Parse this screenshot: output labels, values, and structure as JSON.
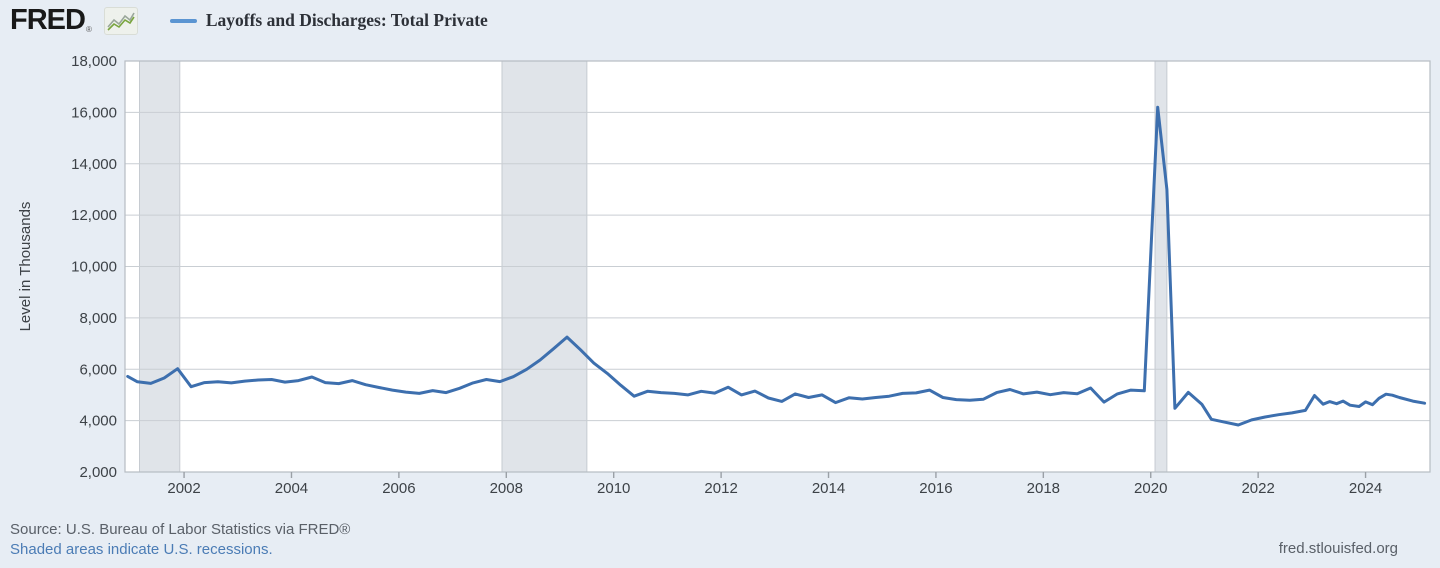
{
  "header": {
    "logo_text": "FRED",
    "registered_mark": "®",
    "legend": {
      "series_label": "Layoffs and Discharges: Total Private",
      "marker_color": "#5b95d2"
    }
  },
  "footer": {
    "source_line": "Source: U.S. Bureau of Labor Statistics via FRED®",
    "recessions_note": "Shaded areas indicate U.S. recessions.",
    "site_link": "fred.stlouisfed.org"
  },
  "colors": {
    "page_background": "#e7edf4",
    "plot_background": "#ffffff",
    "line": "#3d6fae",
    "legend_marker": "#5b95d2",
    "recession_band": "#e0e4e9",
    "recession_band_edge": "#c6cbd1",
    "gridline": "#c9ced3",
    "plot_border": "#b6bcc3",
    "tick": "#9aa0a6",
    "axis_text": "#3d4247",
    "source_text": "#5a6068",
    "link_text": "#4b7cb5"
  },
  "chart_data": {
    "type": "line",
    "title": "Layoffs and Discharges: Total Private",
    "xlabel": "",
    "ylabel": "Level in Thousands",
    "x_range": [
      2000.9,
      2025.2
    ],
    "y_range": [
      2000,
      18000
    ],
    "x_ticks": [
      2002,
      2004,
      2006,
      2008,
      2010,
      2012,
      2014,
      2016,
      2018,
      2020,
      2022,
      2024
    ],
    "y_ticks": [
      2000,
      4000,
      6000,
      8000,
      10000,
      12000,
      14000,
      16000,
      18000
    ],
    "y_tick_labels": [
      "2,000",
      "4,000",
      "6,000",
      "8,000",
      "10,000",
      "12,000",
      "14,000",
      "16,000",
      "18,000"
    ],
    "grid": "horizontal",
    "legend_position": "top-left",
    "recession_bands": [
      [
        2001.17,
        2001.92
      ],
      [
        2007.92,
        2009.5
      ],
      [
        2020.08,
        2020.3
      ]
    ],
    "series": [
      {
        "name": "Layoffs and Discharges: Total Private",
        "points": [
          [
            2000.95,
            5720
          ],
          [
            2001.13,
            5510
          ],
          [
            2001.38,
            5450
          ],
          [
            2001.63,
            5660
          ],
          [
            2001.88,
            6020
          ],
          [
            2002.13,
            5320
          ],
          [
            2002.38,
            5480
          ],
          [
            2002.63,
            5510
          ],
          [
            2002.88,
            5470
          ],
          [
            2003.13,
            5540
          ],
          [
            2003.38,
            5580
          ],
          [
            2003.63,
            5600
          ],
          [
            2003.88,
            5500
          ],
          [
            2004.13,
            5560
          ],
          [
            2004.38,
            5700
          ],
          [
            2004.63,
            5480
          ],
          [
            2004.88,
            5440
          ],
          [
            2005.13,
            5560
          ],
          [
            2005.38,
            5400
          ],
          [
            2005.63,
            5290
          ],
          [
            2005.88,
            5190
          ],
          [
            2006.13,
            5110
          ],
          [
            2006.38,
            5060
          ],
          [
            2006.63,
            5170
          ],
          [
            2006.88,
            5090
          ],
          [
            2007.13,
            5260
          ],
          [
            2007.38,
            5470
          ],
          [
            2007.63,
            5600
          ],
          [
            2007.88,
            5520
          ],
          [
            2008.13,
            5710
          ],
          [
            2008.38,
            6000
          ],
          [
            2008.63,
            6360
          ],
          [
            2008.88,
            6800
          ],
          [
            2009.13,
            7250
          ],
          [
            2009.38,
            6760
          ],
          [
            2009.63,
            6240
          ],
          [
            2009.88,
            5840
          ],
          [
            2010.13,
            5380
          ],
          [
            2010.38,
            4950
          ],
          [
            2010.63,
            5140
          ],
          [
            2010.88,
            5090
          ],
          [
            2011.13,
            5060
          ],
          [
            2011.38,
            5000
          ],
          [
            2011.63,
            5140
          ],
          [
            2011.88,
            5070
          ],
          [
            2012.13,
            5300
          ],
          [
            2012.38,
            5000
          ],
          [
            2012.63,
            5150
          ],
          [
            2012.88,
            4880
          ],
          [
            2013.13,
            4750
          ],
          [
            2013.38,
            5040
          ],
          [
            2013.63,
            4900
          ],
          [
            2013.88,
            5000
          ],
          [
            2014.13,
            4700
          ],
          [
            2014.38,
            4890
          ],
          [
            2014.63,
            4840
          ],
          [
            2014.88,
            4900
          ],
          [
            2015.13,
            4950
          ],
          [
            2015.38,
            5060
          ],
          [
            2015.63,
            5080
          ],
          [
            2015.88,
            5190
          ],
          [
            2016.13,
            4900
          ],
          [
            2016.38,
            4820
          ],
          [
            2016.63,
            4790
          ],
          [
            2016.88,
            4830
          ],
          [
            2017.13,
            5090
          ],
          [
            2017.38,
            5210
          ],
          [
            2017.63,
            5040
          ],
          [
            2017.88,
            5110
          ],
          [
            2018.13,
            5010
          ],
          [
            2018.38,
            5090
          ],
          [
            2018.63,
            5050
          ],
          [
            2018.88,
            5270
          ],
          [
            2019.13,
            4720
          ],
          [
            2019.38,
            5040
          ],
          [
            2019.63,
            5190
          ],
          [
            2019.88,
            5160
          ],
          [
            2020.13,
            16200
          ],
          [
            2020.3,
            13000
          ],
          [
            2020.45,
            4480
          ],
          [
            2020.7,
            5100
          ],
          [
            2020.95,
            4640
          ],
          [
            2021.13,
            4050
          ],
          [
            2021.38,
            3940
          ],
          [
            2021.63,
            3830
          ],
          [
            2021.88,
            4030
          ],
          [
            2022.13,
            4140
          ],
          [
            2022.38,
            4230
          ],
          [
            2022.63,
            4300
          ],
          [
            2022.88,
            4400
          ],
          [
            2023.05,
            4980
          ],
          [
            2023.21,
            4640
          ],
          [
            2023.33,
            4740
          ],
          [
            2023.46,
            4660
          ],
          [
            2023.58,
            4760
          ],
          [
            2023.71,
            4600
          ],
          [
            2023.88,
            4550
          ],
          [
            2024.0,
            4730
          ],
          [
            2024.13,
            4620
          ],
          [
            2024.25,
            4870
          ],
          [
            2024.38,
            5030
          ],
          [
            2024.5,
            4990
          ],
          [
            2024.63,
            4900
          ],
          [
            2024.88,
            4760
          ],
          [
            2025.1,
            4680
          ]
        ]
      }
    ]
  }
}
